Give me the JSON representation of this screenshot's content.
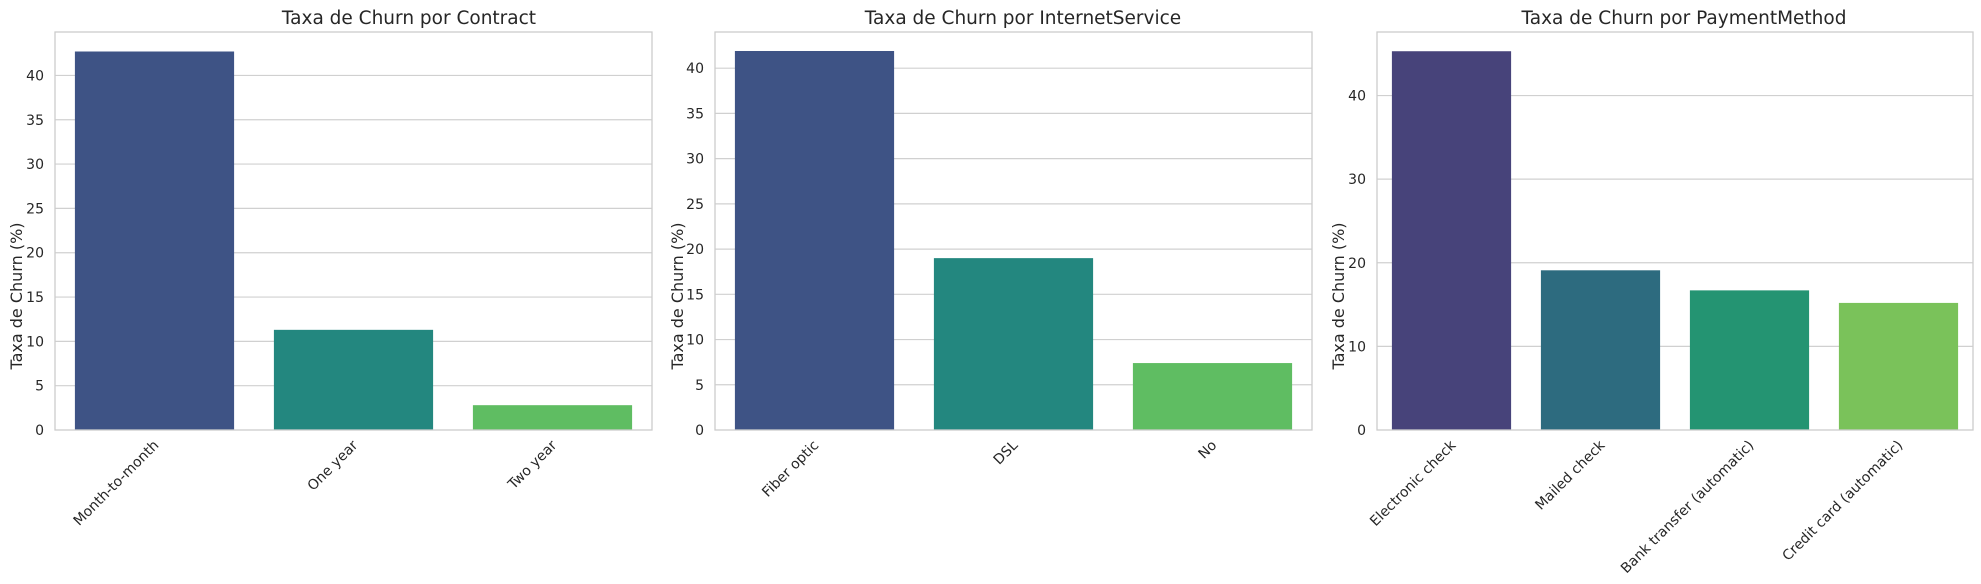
{
  "chart_data": [
    {
      "type": "bar",
      "title": "Taxa de Churn por Contract",
      "xlabel": "",
      "ylabel": "Taxa de Churn (%)",
      "categories": [
        "Month-to-month",
        "One year",
        "Two year"
      ],
      "values": [
        42.7,
        11.3,
        2.8
      ],
      "yticks": [
        0,
        5,
        10,
        15,
        20,
        25,
        30,
        35,
        40
      ],
      "ylim": [
        0,
        44.9
      ],
      "grid": true,
      "colors": [
        "#3e5385",
        "#23877f",
        "#5fbd62"
      ]
    },
    {
      "type": "bar",
      "title": "Taxa de Churn por InternetService",
      "xlabel": "",
      "ylabel": "Taxa de Churn (%)",
      "categories": [
        "Fiber optic",
        "DSL",
        "No"
      ],
      "values": [
        41.9,
        19.0,
        7.4
      ],
      "yticks": [
        0,
        5,
        10,
        15,
        20,
        25,
        30,
        35,
        40
      ],
      "ylim": [
        0,
        44.0
      ],
      "grid": true,
      "colors": [
        "#3e5385",
        "#23877f",
        "#5fbd62"
      ]
    },
    {
      "type": "bar",
      "title": "Taxa de Churn por PaymentMethod",
      "xlabel": "",
      "ylabel": "Taxa de Churn (%)",
      "categories": [
        "Electronic check",
        "Mailed check",
        "Bank transfer (automatic)",
        "Credit card (automatic)"
      ],
      "values": [
        45.3,
        19.1,
        16.7,
        15.2
      ],
      "yticks": [
        0,
        10,
        20,
        30,
        40
      ],
      "ylim": [
        0,
        47.6
      ],
      "grid": true,
      "colors": [
        "#47437a",
        "#2d6b7f",
        "#249472",
        "#7ac25a"
      ]
    }
  ]
}
